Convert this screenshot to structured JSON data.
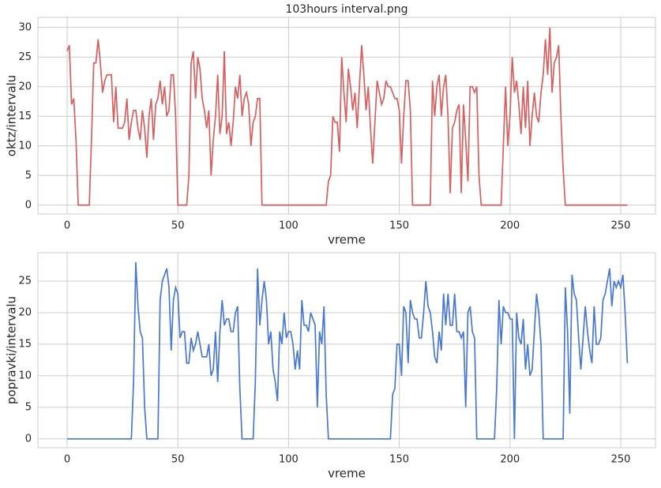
{
  "chart_data": [
    {
      "type": "line",
      "title": "103hours interval.png",
      "x_label": "vreme",
      "y_label": "oktz/intervalu",
      "grid": true,
      "xlim": [
        -13.2,
        265.7
      ],
      "ylim": [
        -1.5,
        31.7
      ],
      "xticks": [
        0,
        50,
        100,
        150,
        200,
        250
      ],
      "yticks": [
        0,
        5,
        10,
        15,
        20,
        25,
        30
      ],
      "x": [
        0,
        1,
        2,
        3,
        4,
        5,
        6,
        7,
        8,
        9,
        10,
        11,
        12,
        13,
        14,
        15,
        16,
        17,
        18,
        19,
        20,
        21,
        22,
        23,
        24,
        25,
        26,
        27,
        28,
        29,
        30,
        31,
        32,
        33,
        34,
        35,
        36,
        37,
        38,
        39,
        40,
        41,
        42,
        43,
        44,
        45,
        46,
        47,
        48,
        49,
        50,
        51,
        52,
        53,
        54,
        55,
        56,
        57,
        58,
        59,
        60,
        61,
        62,
        63,
        64,
        65,
        66,
        67,
        68,
        69,
        70,
        71,
        72,
        73,
        74,
        75,
        76,
        77,
        78,
        79,
        80,
        81,
        82,
        83,
        84,
        85,
        86,
        87,
        88,
        89,
        90,
        91,
        92,
        93,
        94,
        95,
        96,
        97,
        98,
        99,
        100,
        101,
        102,
        103,
        104,
        105,
        106,
        107,
        108,
        109,
        110,
        111,
        112,
        113,
        114,
        115,
        116,
        117,
        118,
        119,
        120,
        121,
        122,
        123,
        124,
        125,
        126,
        127,
        128,
        129,
        130,
        131,
        132,
        133,
        134,
        135,
        136,
        137,
        138,
        139,
        140,
        141,
        142,
        143,
        144,
        145,
        146,
        147,
        148,
        149,
        150,
        151,
        152,
        153,
        154,
        155,
        156,
        157,
        158,
        159,
        160,
        161,
        162,
        163,
        164,
        165,
        166,
        167,
        168,
        169,
        170,
        171,
        172,
        173,
        174,
        175,
        176,
        177,
        178,
        179,
        180,
        181,
        182,
        183,
        184,
        185,
        186,
        187,
        188,
        189,
        190,
        191,
        192,
        193,
        194,
        195,
        196,
        197,
        198,
        199,
        200,
        201,
        202,
        203,
        204,
        205,
        206,
        207,
        208,
        209,
        210,
        211,
        212,
        213,
        214,
        215,
        216,
        217,
        218,
        219,
        220,
        221,
        222,
        223,
        224,
        225,
        226,
        227,
        228,
        229,
        230,
        231,
        232,
        233,
        234,
        235,
        236,
        237,
        238,
        239,
        240,
        241,
        242,
        243,
        244,
        245,
        246,
        247,
        248,
        249,
        250,
        251,
        252,
        253
      ],
      "series": [
        {
          "color": "#d65f5f",
          "values": [
            26,
            27,
            17,
            18,
            11,
            0,
            0,
            0,
            0,
            0,
            0,
            11,
            24,
            24,
            28,
            24,
            19,
            21,
            22,
            22,
            22,
            14,
            20,
            13,
            13,
            13,
            14,
            18,
            11,
            14,
            16,
            16,
            13,
            11,
            16,
            13,
            8,
            15,
            18,
            11,
            17,
            18,
            21,
            17,
            20,
            15,
            16,
            22,
            22,
            15,
            0,
            0,
            0,
            0,
            0,
            5,
            24,
            26,
            18,
            25,
            23,
            18,
            16,
            13,
            16,
            5,
            11,
            15,
            22,
            12,
            15,
            26,
            12,
            14,
            10,
            14,
            20,
            18,
            22,
            15,
            18,
            19,
            17,
            10,
            14,
            15,
            18,
            18,
            0,
            0,
            0,
            0,
            0,
            0,
            0,
            0,
            0,
            0,
            0,
            0,
            0,
            0,
            0,
            0,
            0,
            0,
            0,
            0,
            0,
            0,
            0,
            0,
            0,
            0,
            0,
            0,
            0,
            0,
            4,
            5,
            15,
            14,
            14,
            9,
            25,
            19,
            14,
            23,
            20,
            16,
            19,
            13,
            20,
            27,
            22,
            16,
            20,
            13,
            7,
            14,
            21,
            19,
            17,
            18,
            21,
            20,
            20,
            19,
            18,
            18,
            16,
            7,
            15,
            21,
            21,
            16,
            0,
            0,
            0,
            0,
            0,
            0,
            0,
            0,
            0,
            21,
            15,
            20,
            22,
            15,
            20,
            22,
            15,
            2,
            13,
            14,
            16,
            17,
            2,
            17,
            11,
            4,
            20,
            20,
            19,
            20,
            5,
            0,
            0,
            0,
            0,
            0,
            0,
            0,
            0,
            0,
            0,
            10,
            20,
            10,
            15,
            25,
            19,
            21,
            17,
            12,
            20,
            13,
            21,
            10,
            15,
            19,
            15,
            14,
            19,
            22,
            28,
            22,
            30,
            19,
            24,
            25,
            27,
            15,
            6,
            0,
            0,
            0,
            0,
            0,
            0,
            0,
            0,
            0,
            0,
            0,
            0,
            0,
            0,
            0,
            0,
            0,
            0,
            0,
            0,
            0,
            0,
            0,
            0,
            0,
            0,
            0,
            0,
            0
          ]
        }
      ]
    },
    {
      "type": "line",
      "x_label": "vreme",
      "y_label": "popravki/intervalu",
      "grid": true,
      "xlim": [
        -13.2,
        265.7
      ],
      "ylim": [
        -1.4,
        29.5
      ],
      "xticks": [
        0,
        50,
        100,
        150,
        200,
        250
      ],
      "yticks": [
        0,
        5,
        10,
        15,
        20,
        25
      ],
      "x": [
        0,
        1,
        2,
        3,
        4,
        5,
        6,
        7,
        8,
        9,
        10,
        11,
        12,
        13,
        14,
        15,
        16,
        17,
        18,
        19,
        20,
        21,
        22,
        23,
        24,
        25,
        26,
        27,
        28,
        29,
        30,
        31,
        32,
        33,
        34,
        35,
        36,
        37,
        38,
        39,
        40,
        41,
        42,
        43,
        44,
        45,
        46,
        47,
        48,
        49,
        50,
        51,
        52,
        53,
        54,
        55,
        56,
        57,
        58,
        59,
        60,
        61,
        62,
        63,
        64,
        65,
        66,
        67,
        68,
        69,
        70,
        71,
        72,
        73,
        74,
        75,
        76,
        77,
        78,
        79,
        80,
        81,
        82,
        83,
        84,
        85,
        86,
        87,
        88,
        89,
        90,
        91,
        92,
        93,
        94,
        95,
        96,
        97,
        98,
        99,
        100,
        101,
        102,
        103,
        104,
        105,
        106,
        107,
        108,
        109,
        110,
        111,
        112,
        113,
        114,
        115,
        116,
        117,
        118,
        119,
        120,
        121,
        122,
        123,
        124,
        125,
        126,
        127,
        128,
        129,
        130,
        131,
        132,
        133,
        134,
        135,
        136,
        137,
        138,
        139,
        140,
        141,
        142,
        143,
        144,
        145,
        146,
        147,
        148,
        149,
        150,
        151,
        152,
        153,
        154,
        155,
        156,
        157,
        158,
        159,
        160,
        161,
        162,
        163,
        164,
        165,
        166,
        167,
        168,
        169,
        170,
        171,
        172,
        173,
        174,
        175,
        176,
        177,
        178,
        179,
        180,
        181,
        182,
        183,
        184,
        185,
        186,
        187,
        188,
        189,
        190,
        191,
        192,
        193,
        194,
        195,
        196,
        197,
        198,
        199,
        200,
        201,
        202,
        203,
        204,
        205,
        206,
        207,
        208,
        209,
        210,
        211,
        212,
        213,
        214,
        215,
        216,
        217,
        218,
        219,
        220,
        221,
        222,
        223,
        224,
        225,
        226,
        227,
        228,
        229,
        230,
        231,
        232,
        233,
        234,
        235,
        236,
        237,
        238,
        239,
        240,
        241,
        242,
        243,
        244,
        245,
        246,
        247,
        248,
        249,
        250,
        251,
        252,
        253
      ],
      "series": [
        {
          "color": "#4878cf",
          "values": [
            0,
            0,
            0,
            0,
            0,
            0,
            0,
            0,
            0,
            0,
            0,
            0,
            0,
            0,
            0,
            0,
            0,
            0,
            0,
            0,
            0,
            0,
            0,
            0,
            0,
            0,
            0,
            0,
            0,
            0,
            9,
            28,
            21,
            17,
            16,
            5,
            0,
            0,
            0,
            0,
            0,
            0,
            22,
            25,
            26,
            27,
            24,
            14,
            22,
            24,
            23,
            16,
            17,
            17,
            12,
            12,
            16,
            14,
            15,
            17,
            15,
            13,
            13,
            13,
            15,
            10,
            11,
            17,
            9,
            17,
            22,
            18,
            19,
            19,
            17,
            17,
            20,
            21,
            8,
            0,
            0,
            0,
            0,
            0,
            0,
            9,
            27,
            18,
            22,
            25,
            22,
            15,
            17,
            11,
            9,
            6,
            17,
            15,
            20,
            16,
            17,
            17,
            15,
            11,
            14,
            11,
            22,
            18,
            18,
            17,
            20,
            19,
            18,
            5,
            17,
            15,
            21,
            7,
            0,
            0,
            0,
            0,
            0,
            0,
            0,
            0,
            0,
            0,
            0,
            0,
            0,
            0,
            0,
            0,
            0,
            0,
            0,
            0,
            0,
            0,
            0,
            0,
            0,
            0,
            0,
            0,
            0,
            7,
            8,
            15,
            15,
            10,
            21,
            20,
            12,
            22,
            20,
            19,
            19,
            16,
            16,
            20,
            25,
            21,
            20,
            17,
            13,
            12,
            17,
            14,
            23,
            18,
            23,
            18,
            18,
            23,
            17,
            17,
            16,
            17,
            5,
            20,
            21,
            17,
            16,
            0,
            0,
            0,
            0,
            0,
            0,
            0,
            0,
            0,
            8,
            22,
            15,
            21,
            20,
            20,
            19,
            19,
            0,
            20,
            16,
            15,
            19,
            11,
            15,
            10,
            11,
            17,
            23,
            20,
            15,
            0,
            0,
            0,
            0,
            0,
            0,
            0,
            0,
            0,
            0,
            24,
            17,
            4,
            26,
            23,
            22,
            16,
            11,
            16,
            21,
            17,
            14,
            12,
            21,
            15,
            15,
            16,
            22,
            23,
            25,
            27,
            21,
            25,
            24,
            25,
            24,
            26,
            20,
            12
          ]
        }
      ]
    }
  ]
}
